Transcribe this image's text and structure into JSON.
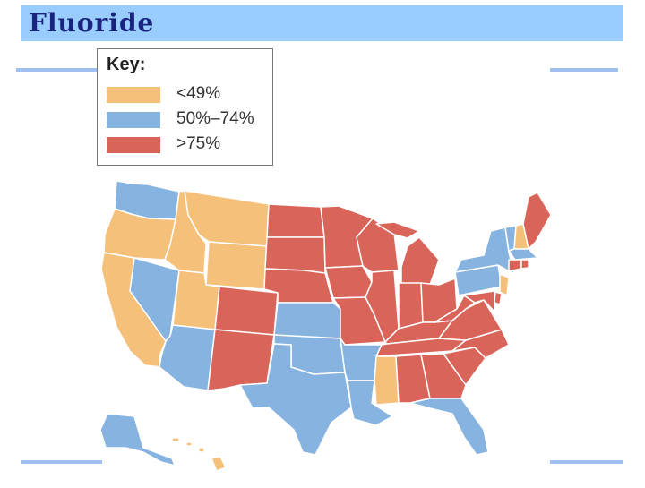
{
  "slide": {
    "title": "Fluoride"
  },
  "legend": {
    "title": "Key:",
    "items": [
      {
        "label": "<49%",
        "color": "#f5c07a"
      },
      {
        "label": "50%–74%",
        "color": "#86b3e0"
      },
      {
        "label": ">75%",
        "color": "#d9655a"
      }
    ]
  },
  "map": {
    "colors": {
      "low": "#f5c07a",
      "mid": "#86b3e0",
      "high": "#d9655a",
      "border": "#ffffff"
    },
    "states": [
      {
        "name": "Washington",
        "category": "mid"
      },
      {
        "name": "Oregon",
        "category": "low"
      },
      {
        "name": "California",
        "category": "low"
      },
      {
        "name": "Idaho",
        "category": "low"
      },
      {
        "name": "Nevada",
        "category": "mid"
      },
      {
        "name": "Montana",
        "category": "low"
      },
      {
        "name": "Wyoming",
        "category": "low"
      },
      {
        "name": "Utah",
        "category": "low"
      },
      {
        "name": "Arizona",
        "category": "mid"
      },
      {
        "name": "Colorado",
        "category": "high"
      },
      {
        "name": "New Mexico",
        "category": "high"
      },
      {
        "name": "North Dakota",
        "category": "high"
      },
      {
        "name": "South Dakota",
        "category": "high"
      },
      {
        "name": "Nebraska",
        "category": "high"
      },
      {
        "name": "Kansas",
        "category": "mid"
      },
      {
        "name": "Oklahoma",
        "category": "mid"
      },
      {
        "name": "Texas",
        "category": "mid"
      },
      {
        "name": "Minnesota",
        "category": "high"
      },
      {
        "name": "Iowa",
        "category": "high"
      },
      {
        "name": "Missouri",
        "category": "high"
      },
      {
        "name": "Arkansas",
        "category": "mid"
      },
      {
        "name": "Louisiana",
        "category": "mid"
      },
      {
        "name": "Wisconsin",
        "category": "high"
      },
      {
        "name": "Illinois",
        "category": "high"
      },
      {
        "name": "Michigan",
        "category": "high"
      },
      {
        "name": "Indiana",
        "category": "high"
      },
      {
        "name": "Ohio",
        "category": "high"
      },
      {
        "name": "Kentucky",
        "category": "high"
      },
      {
        "name": "Tennessee",
        "category": "high"
      },
      {
        "name": "Mississippi",
        "category": "low"
      },
      {
        "name": "Alabama",
        "category": "high"
      },
      {
        "name": "Georgia",
        "category": "high"
      },
      {
        "name": "Florida",
        "category": "mid"
      },
      {
        "name": "South Carolina",
        "category": "high"
      },
      {
        "name": "North Carolina",
        "category": "high"
      },
      {
        "name": "Virginia",
        "category": "high"
      },
      {
        "name": "West Virginia",
        "category": "high"
      },
      {
        "name": "Pennsylvania",
        "category": "mid"
      },
      {
        "name": "New York",
        "category": "mid"
      },
      {
        "name": "Vermont",
        "category": "mid"
      },
      {
        "name": "New Hampshire",
        "category": "low"
      },
      {
        "name": "Maine",
        "category": "high"
      },
      {
        "name": "Massachusetts",
        "category": "mid"
      },
      {
        "name": "Connecticut",
        "category": "high"
      },
      {
        "name": "Rhode Island",
        "category": "high"
      },
      {
        "name": "New Jersey",
        "category": "low"
      },
      {
        "name": "Delaware",
        "category": "high"
      },
      {
        "name": "Maryland",
        "category": "high"
      },
      {
        "name": "Alaska",
        "category": "mid"
      },
      {
        "name": "Hawaii",
        "category": "low"
      }
    ]
  }
}
